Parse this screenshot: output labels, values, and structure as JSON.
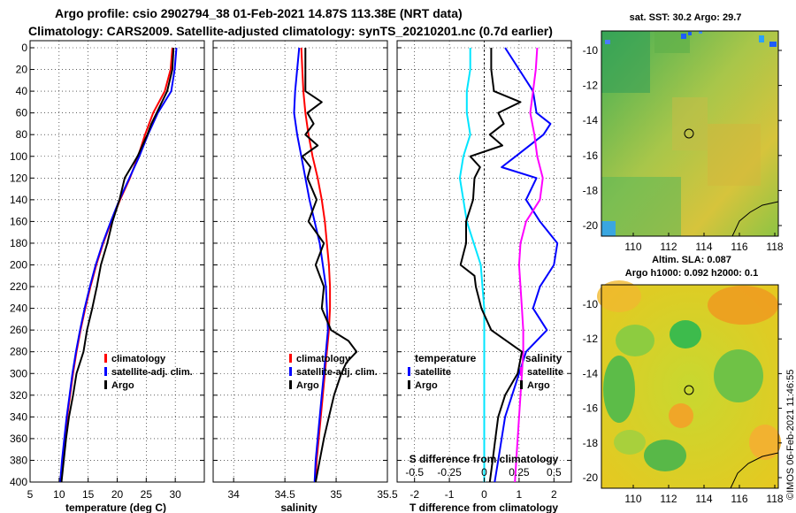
{
  "title": {
    "line1": "Argo profile: csio 2902794_38 01-Feb-2021 14.87S 113.38E (NRT data)",
    "line2": "Climatology: CARS2009. Satellite-adjusted climatology: synTS_20210201.nc (0.7d earlier)"
  },
  "credit": "©IMOS 06-Feb-2021 11:46:55",
  "colors": {
    "climatology": "#ff0000",
    "satellite": "#0000ff",
    "argo": "#000000",
    "temp_diff": "#00e5ff",
    "sal_diff": "#ff00ff"
  },
  "chart_data": [
    {
      "type": "line",
      "name": "temperature",
      "xlabel": "temperature (deg C)",
      "ylabel": "",
      "xlim": [
        5,
        35
      ],
      "ylim": [
        400,
        0
      ],
      "xticks": [
        5,
        10,
        15,
        20,
        25,
        30
      ],
      "yticks": [
        0,
        20,
        40,
        60,
        80,
        100,
        120,
        140,
        160,
        180,
        200,
        220,
        240,
        260,
        280,
        300,
        320,
        340,
        360,
        380,
        400
      ],
      "legend": [
        "climatology",
        "satellite-adj. clim.",
        "Argo"
      ],
      "series": [
        {
          "name": "climatology",
          "depth": [
            0,
            20,
            40,
            60,
            80,
            100,
            120,
            140,
            160,
            180,
            200,
            220,
            240,
            260,
            280,
            300,
            320,
            340,
            360,
            380,
            400
          ],
          "values": [
            29.5,
            29.2,
            28.2,
            26.2,
            24.8,
            23.6,
            22.2,
            20.5,
            19.0,
            17.6,
            16.4,
            15.4,
            14.5,
            13.7,
            13.0,
            12.4,
            11.9,
            11.4,
            11.0,
            10.6,
            10.3
          ]
        },
        {
          "name": "satellite-adj. clim.",
          "depth": [
            0,
            20,
            40,
            60,
            80,
            100,
            120,
            140,
            160,
            180,
            200,
            220,
            240,
            260,
            280,
            300,
            320,
            340,
            360,
            380,
            400
          ],
          "values": [
            30.2,
            29.9,
            29.3,
            27.0,
            25.3,
            23.8,
            22.1,
            20.4,
            18.9,
            17.5,
            16.3,
            15.3,
            14.4,
            13.6,
            12.9,
            12.3,
            11.8,
            11.3,
            10.9,
            10.5,
            10.2
          ]
        },
        {
          "name": "Argo",
          "depth": [
            0,
            20,
            40,
            60,
            70,
            80,
            100,
            120,
            140,
            160,
            180,
            200,
            220,
            240,
            260,
            280,
            300,
            320,
            340,
            360,
            380,
            400
          ],
          "values": [
            29.7,
            29.5,
            28.6,
            26.8,
            25.9,
            25.2,
            23.5,
            21.3,
            20.4,
            19.2,
            18.3,
            17.2,
            16.5,
            15.7,
            14.8,
            14.2,
            13.0,
            12.4,
            11.7,
            11.2,
            10.8,
            10.4
          ]
        }
      ]
    },
    {
      "type": "line",
      "name": "salinity",
      "xlabel": "salinity",
      "xlim": [
        33.8,
        35.5
      ],
      "ylim": [
        400,
        0
      ],
      "xticks": [
        34,
        34.5,
        35,
        35.5
      ],
      "legend": [
        "climatology",
        "satellite-adj. clim.",
        "Argo"
      ],
      "series": [
        {
          "name": "climatology",
          "depth": [
            0,
            20,
            40,
            60,
            80,
            100,
            120,
            140,
            160,
            180,
            200,
            220,
            240,
            260,
            280,
            300,
            320,
            340,
            360,
            380,
            400
          ],
          "values": [
            34.66,
            34.67,
            34.68,
            34.7,
            34.73,
            34.77,
            34.82,
            34.86,
            34.89,
            34.91,
            34.93,
            34.94,
            34.94,
            34.93,
            34.91,
            34.89,
            34.87,
            34.85,
            34.83,
            34.81,
            34.8
          ]
        },
        {
          "name": "satellite-adj. clim.",
          "depth": [
            0,
            20,
            40,
            60,
            80,
            100,
            120,
            140,
            160,
            180,
            200,
            220,
            240,
            260,
            280,
            300,
            320,
            340,
            360,
            380,
            400
          ],
          "values": [
            34.64,
            34.62,
            34.6,
            34.59,
            34.62,
            34.66,
            34.7,
            34.74,
            34.79,
            34.84,
            34.87,
            34.9,
            34.91,
            34.92,
            34.9,
            34.88,
            34.86,
            34.84,
            34.82,
            34.8,
            34.79
          ]
        },
        {
          "name": "Argo",
          "depth": [
            0,
            20,
            40,
            50,
            60,
            70,
            80,
            90,
            100,
            110,
            120,
            140,
            160,
            180,
            200,
            220,
            240,
            260,
            270,
            280,
            290,
            300,
            320,
            340,
            360,
            380,
            400
          ],
          "values": [
            34.7,
            34.7,
            34.7,
            34.86,
            34.72,
            34.78,
            34.7,
            34.82,
            34.67,
            34.75,
            34.72,
            34.81,
            34.73,
            34.88,
            34.8,
            34.88,
            34.86,
            34.95,
            35.12,
            35.2,
            35.1,
            35.05,
            34.98,
            34.93,
            34.88,
            34.84,
            34.8
          ]
        }
      ]
    },
    {
      "type": "line",
      "name": "difference from climatology",
      "xlabel": "T difference from climatology",
      "x2label": "S difference from climatology",
      "xlim": [
        -2.5,
        2.5
      ],
      "ylim": [
        400,
        0
      ],
      "xticks": [
        -2,
        -1,
        0,
        1,
        2
      ],
      "x2ticks": [
        "-0.5",
        "-0.25",
        "0",
        "0.25",
        "0.5"
      ],
      "legend_left_title": "temperature",
      "legend_right_title": "salinity",
      "legend": [
        "satellite",
        "Argo"
      ],
      "series": [
        {
          "name": "temperature satellite",
          "depth": [
            0,
            20,
            40,
            60,
            80,
            100,
            120,
            140,
            160,
            180,
            200,
            220,
            240,
            260,
            280,
            300,
            320,
            340,
            360,
            380,
            400
          ],
          "values": [
            -0.4,
            -0.4,
            -0.5,
            -0.5,
            -0.4,
            -0.6,
            -0.7,
            -0.6,
            -0.5,
            -0.3,
            -0.1,
            -0.05,
            0.0,
            0.0,
            0.0,
            0.0,
            0.0,
            0.0,
            0.0,
            0.0,
            0.0
          ]
        },
        {
          "name": "temperature Argo",
          "depth": [
            0,
            20,
            40,
            60,
            70,
            80,
            100,
            110,
            120,
            140,
            160,
            180,
            200,
            220,
            240,
            260,
            280,
            300,
            320,
            340,
            360,
            380,
            400
          ],
          "values": [
            0.6,
            1.0,
            1.4,
            1.5,
            1.9,
            1.7,
            0.9,
            0.5,
            1.5,
            1.2,
            1.6,
            2.1,
            2.0,
            1.6,
            1.4,
            1.8,
            1.2,
            1.0,
            0.8,
            0.6,
            0.5,
            0.4,
            0.3
          ]
        },
        {
          "name": "salinity satellite",
          "depth": [
            0,
            20,
            40,
            60,
            80,
            100,
            120,
            140,
            160,
            180,
            200,
            220,
            240,
            260,
            280,
            300,
            320,
            340,
            360,
            380,
            400
          ],
          "values": [
            0.38,
            0.37,
            0.35,
            0.33,
            0.36,
            0.38,
            0.42,
            0.4,
            0.3,
            0.26,
            0.25,
            0.26,
            0.27,
            0.28,
            0.28,
            0.27,
            0.26,
            0.25,
            0.24,
            0.23,
            0.22
          ]
        },
        {
          "name": "salinity Argo",
          "depth": [
            0,
            20,
            40,
            50,
            60,
            70,
            80,
            90,
            100,
            110,
            120,
            140,
            160,
            180,
            200,
            210,
            220,
            240,
            260,
            280,
            300,
            320,
            340,
            360,
            380,
            400
          ],
          "values": [
            0.05,
            0.05,
            0.07,
            0.26,
            0.1,
            0.14,
            0.04,
            0.13,
            -0.1,
            -0.03,
            -0.07,
            -0.08,
            -0.13,
            -0.13,
            -0.17,
            -0.07,
            -0.06,
            -0.02,
            0.05,
            0.27,
            0.24,
            0.15,
            0.1,
            0.08,
            0.06,
            0.04
          ]
        }
      ]
    }
  ],
  "maps": {
    "sst": {
      "title": "sat. SST: 30.2 Argo: 29.7",
      "lat_ticks": [
        "-10",
        "-12",
        "-14",
        "-16",
        "-18",
        "-20"
      ],
      "lon_ticks": [
        "110",
        "112",
        "114",
        "116",
        "118"
      ]
    },
    "sla": {
      "title_line1": "Altim. SLA: 0.087",
      "title_line2": "Argo h1000: 0.092 h2000: 0.1",
      "lat_ticks": [
        "-10",
        "-12",
        "-14",
        "-16",
        "-18",
        "-20"
      ],
      "lon_ticks": [
        "110",
        "112",
        "114",
        "116",
        "118"
      ]
    }
  }
}
